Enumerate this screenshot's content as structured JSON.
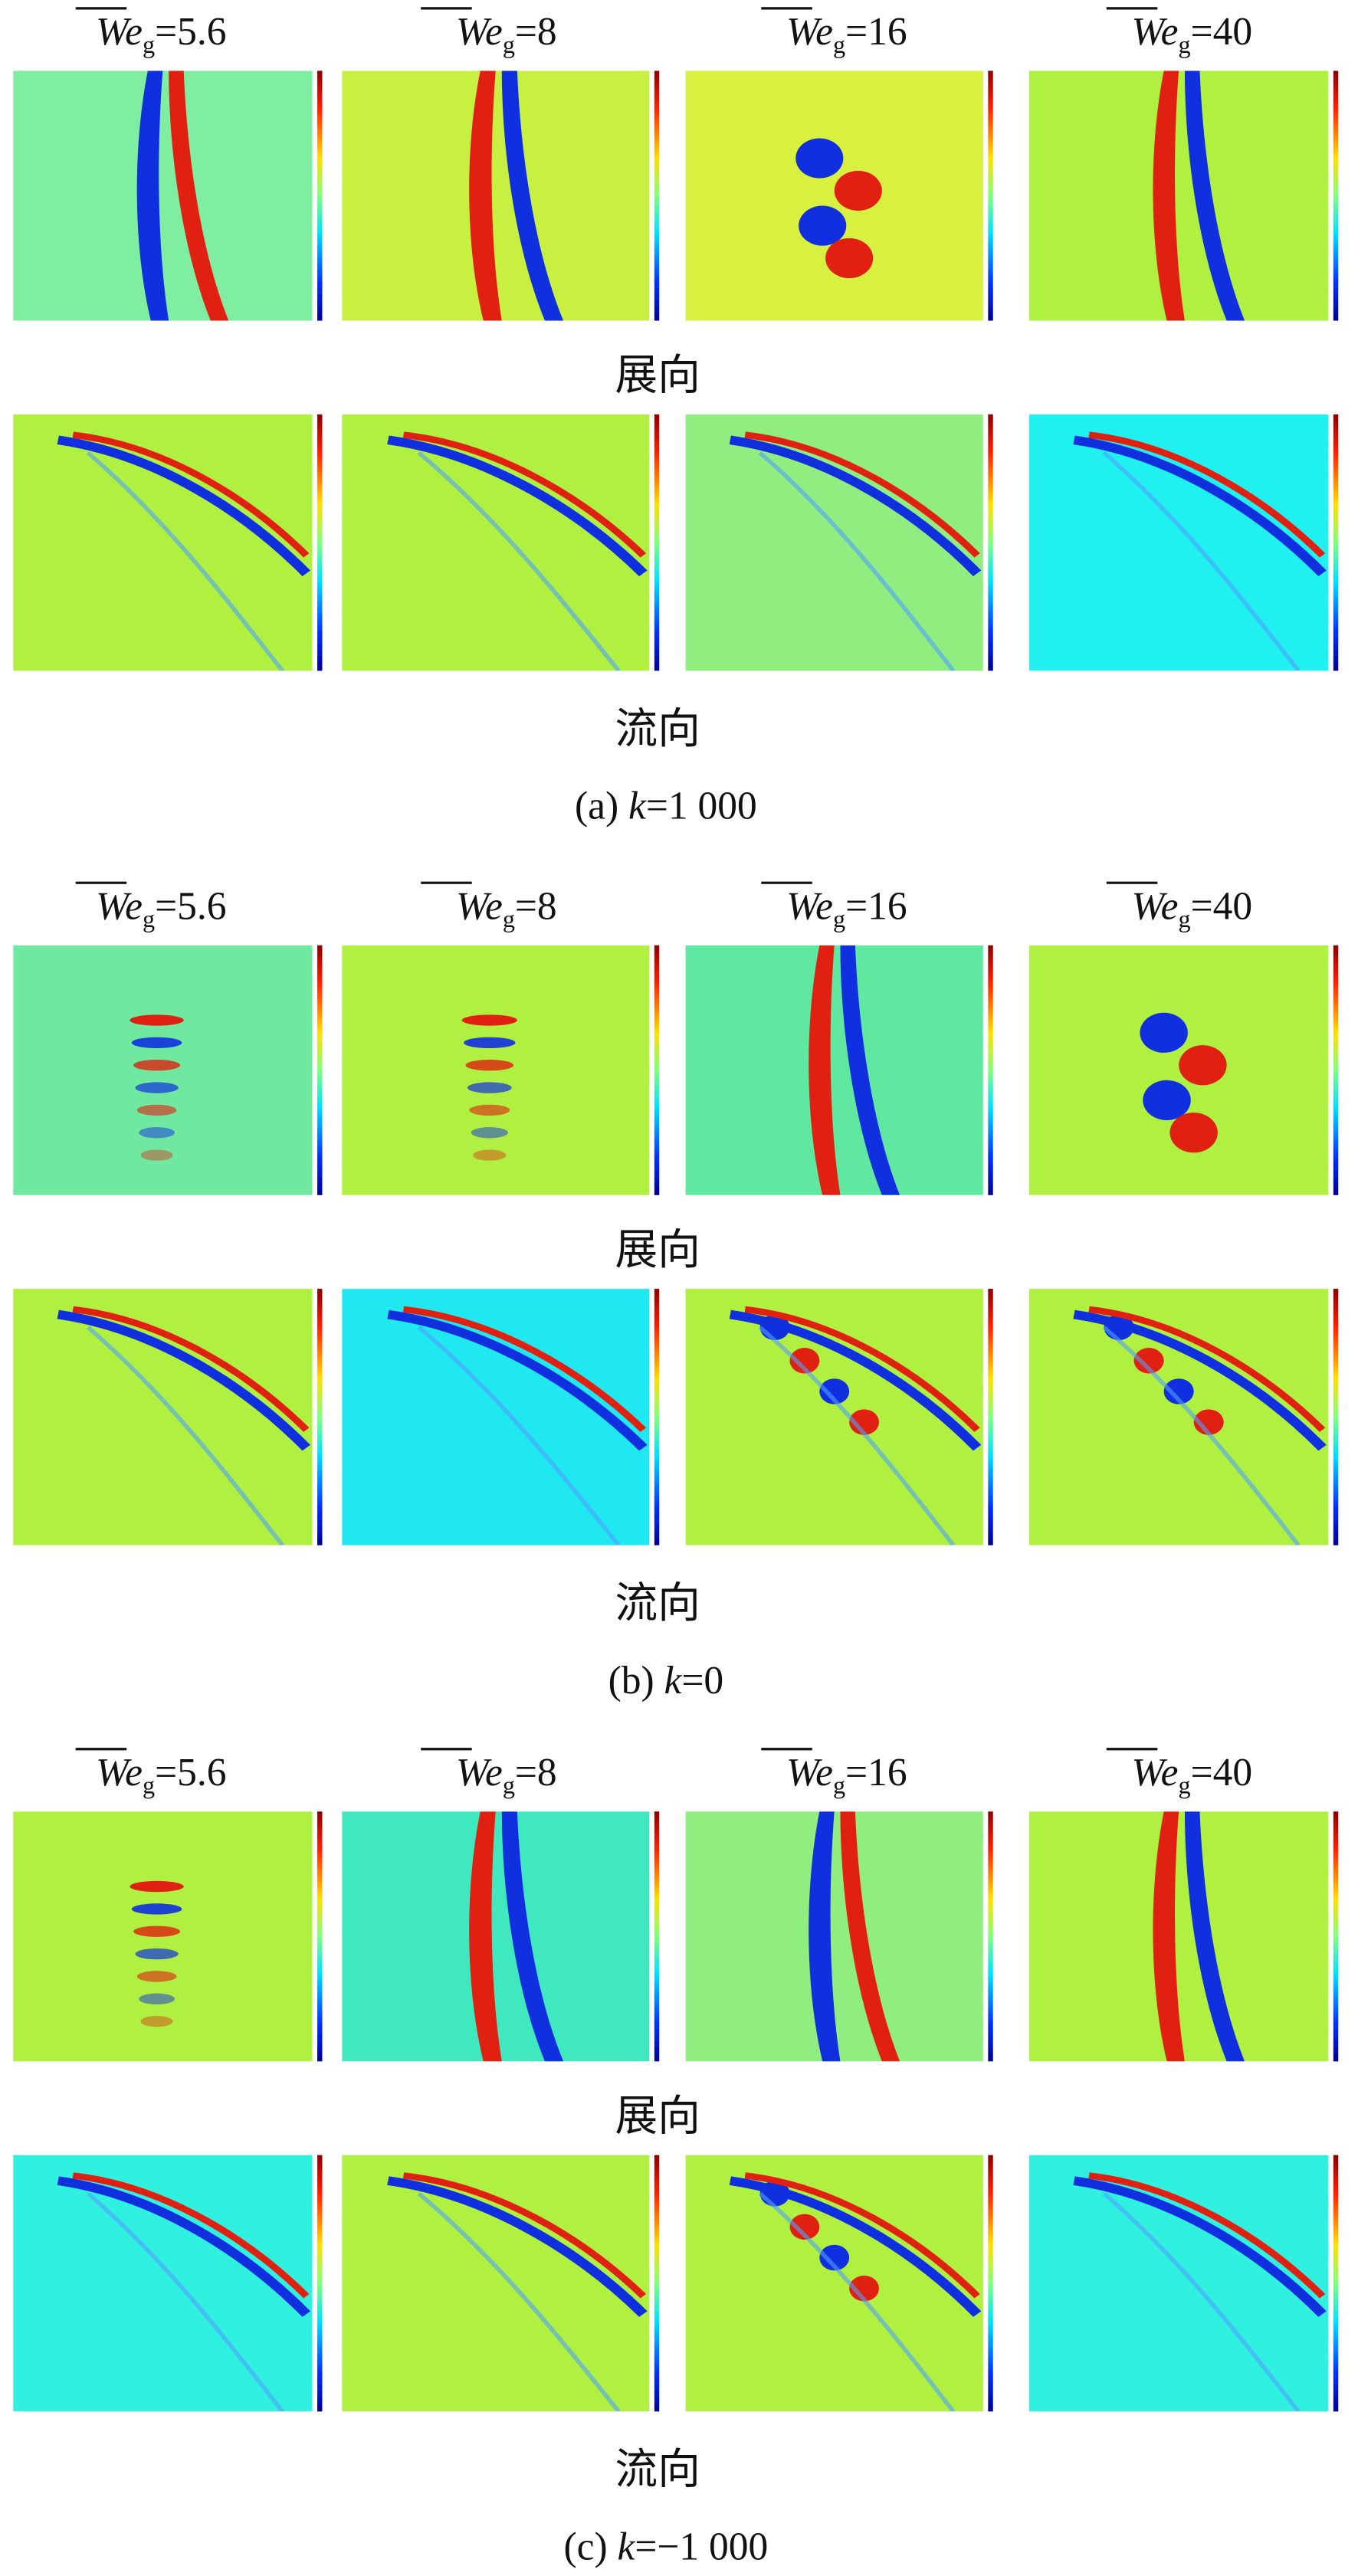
{
  "sections": [
    {
      "columns": [
        {
          "symbol": "We",
          "subscript": "g",
          "value": "=5.6"
        },
        {
          "symbol": "We",
          "subscript": "g",
          "value": "=8"
        },
        {
          "symbol": "We",
          "subscript": "g",
          "value": "=16"
        },
        {
          "symbol": "We",
          "subscript": "g",
          "value": "=40"
        }
      ],
      "row_label_1": "展向",
      "row_label_2": "流向",
      "caption": {
        "prefix": "(a) ",
        "variable": "k",
        "value": "=1 000"
      }
    },
    {
      "columns": [
        {
          "symbol": "We",
          "subscript": "g",
          "value": "=5.6"
        },
        {
          "symbol": "We",
          "subscript": "g",
          "value": "=8"
        },
        {
          "symbol": "We",
          "subscript": "g",
          "value": "=16"
        },
        {
          "symbol": "We",
          "subscript": "g",
          "value": "=40"
        }
      ],
      "row_label_1": "展向",
      "row_label_2": "流向",
      "caption": {
        "prefix": "(b) ",
        "variable": "k",
        "value": "=0"
      }
    },
    {
      "columns": [
        {
          "symbol": "We",
          "subscript": "g",
          "value": "=5.6"
        },
        {
          "symbol": "We",
          "subscript": "g",
          "value": "=8"
        },
        {
          "symbol": "We",
          "subscript": "g",
          "value": "=16"
        },
        {
          "symbol": "We",
          "subscript": "g",
          "value": "=40"
        }
      ],
      "row_label_1": "展向",
      "row_label_2": "流向",
      "caption": {
        "prefix": "(c) ",
        "variable": "k",
        "value": "=−1 000"
      }
    }
  ]
}
